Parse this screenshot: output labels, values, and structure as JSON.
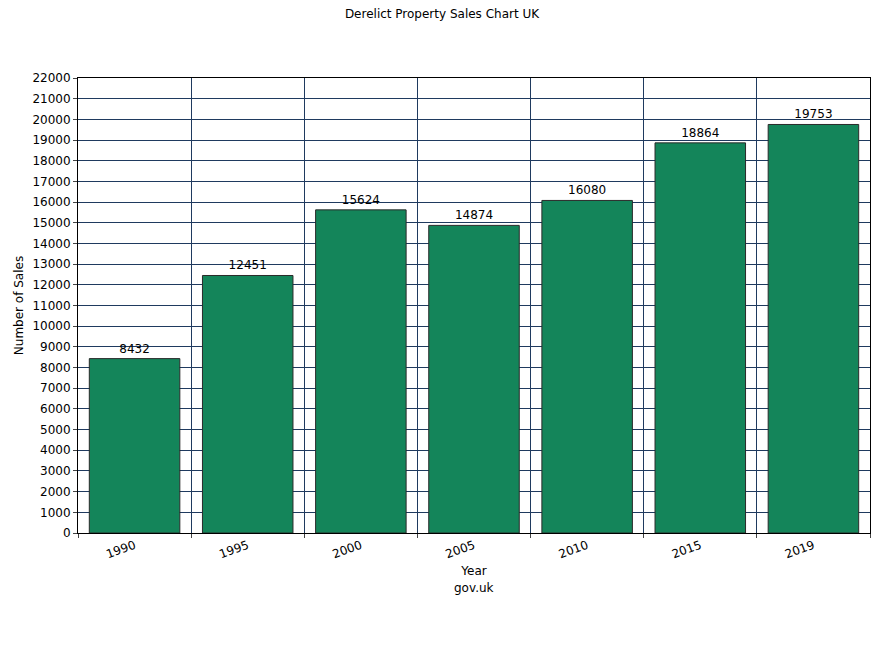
{
  "chart_data": {
    "type": "bar",
    "title": "Derelict Property Sales Chart UK",
    "xlabel": "Year",
    "ylabel": "Number of Sales",
    "annotations": [
      "gov.uk"
    ],
    "categories": [
      "1990",
      "1995",
      "2000",
      "2005",
      "2010",
      "2015",
      "2019"
    ],
    "values": [
      8432,
      12451,
      15624,
      14874,
      16080,
      18864,
      19753
    ],
    "color": "#14855a",
    "ylim": [
      0,
      22000
    ],
    "yticks": [
      0,
      1000,
      2000,
      3000,
      4000,
      5000,
      6000,
      7000,
      8000,
      9000,
      10000,
      11000,
      12000,
      13000,
      14000,
      15000,
      16000,
      17000,
      18000,
      19000,
      20000,
      21000,
      22000
    ],
    "grid": true,
    "data_labels": true
  }
}
